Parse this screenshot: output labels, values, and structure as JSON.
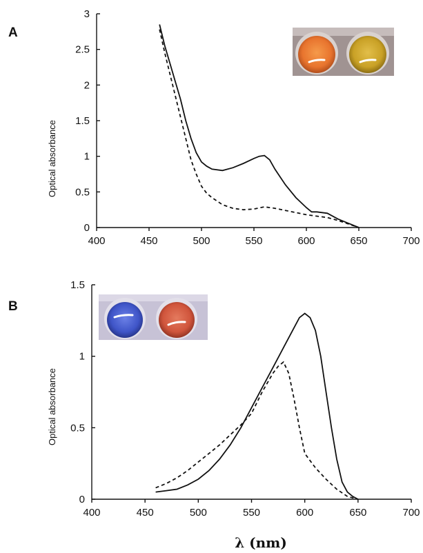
{
  "figure": {
    "xlabel": "λ (nm)",
    "colors": {
      "orange_well": "#e8742e",
      "amber_well": "#c9a126",
      "blue_well": "#3f55c8",
      "red_well": "#d0553c"
    }
  },
  "chart_data": [
    {
      "panel": "A",
      "type": "line",
      "xlabel": "",
      "ylabel": "Optical absorbance",
      "xlim": [
        400,
        700
      ],
      "ylim": [
        0,
        3
      ],
      "xticks": [
        400,
        450,
        500,
        550,
        600,
        650,
        700
      ],
      "yticks": [
        0,
        0.5,
        1,
        1.5,
        2,
        2.5,
        3
      ],
      "ytick_labels": [
        "0",
        "0.5",
        "1",
        "1.5",
        "2",
        "2.5",
        "3"
      ],
      "grid": false,
      "inset": "photo-top-right",
      "series": [
        {
          "style": "solid",
          "x": [
            460,
            465,
            470,
            475,
            480,
            485,
            490,
            495,
            500,
            505,
            510,
            520,
            530,
            540,
            550,
            555,
            560,
            565,
            570,
            580,
            590,
            600,
            605,
            610,
            620,
            630,
            640,
            650
          ],
          "y": [
            2.85,
            2.55,
            2.3,
            2.05,
            1.8,
            1.5,
            1.25,
            1.05,
            0.92,
            0.86,
            0.82,
            0.8,
            0.84,
            0.9,
            0.97,
            1.0,
            1.01,
            0.95,
            0.82,
            0.6,
            0.42,
            0.28,
            0.22,
            0.22,
            0.2,
            0.12,
            0.06,
            0.0
          ]
        },
        {
          "style": "dashed",
          "x": [
            460,
            465,
            470,
            475,
            480,
            485,
            490,
            495,
            500,
            505,
            510,
            520,
            530,
            540,
            550,
            560,
            570,
            580,
            590,
            600,
            610,
            620,
            630,
            640,
            650
          ],
          "y": [
            2.78,
            2.45,
            2.15,
            1.85,
            1.55,
            1.25,
            0.95,
            0.75,
            0.58,
            0.48,
            0.42,
            0.32,
            0.27,
            0.25,
            0.26,
            0.29,
            0.27,
            0.24,
            0.21,
            0.18,
            0.16,
            0.14,
            0.1,
            0.05,
            0.0
          ]
        }
      ]
    },
    {
      "panel": "B",
      "type": "line",
      "xlabel": "λ (nm)",
      "ylabel": "Optical absorbance",
      "xlim": [
        400,
        700
      ],
      "ylim": [
        0,
        1.5
      ],
      "xticks": [
        400,
        450,
        500,
        550,
        600,
        650,
        700
      ],
      "yticks": [
        0,
        0.5,
        1,
        1.5
      ],
      "ytick_labels": [
        "0",
        "0.5",
        "1",
        "1.5"
      ],
      "grid": false,
      "inset": "photo-top-left",
      "series": [
        {
          "style": "solid",
          "x": [
            460,
            470,
            480,
            490,
            500,
            510,
            520,
            530,
            540,
            550,
            560,
            570,
            580,
            590,
            595,
            600,
            605,
            610,
            615,
            620,
            625,
            630,
            635,
            640,
            645,
            650
          ],
          "y": [
            0.05,
            0.06,
            0.07,
            0.1,
            0.14,
            0.2,
            0.28,
            0.38,
            0.5,
            0.64,
            0.78,
            0.92,
            1.06,
            1.2,
            1.27,
            1.3,
            1.27,
            1.18,
            1.0,
            0.75,
            0.5,
            0.28,
            0.12,
            0.05,
            0.02,
            0.0
          ]
        },
        {
          "style": "dashed",
          "x": [
            460,
            470,
            480,
            490,
            500,
            510,
            520,
            530,
            540,
            550,
            560,
            570,
            575,
            580,
            585,
            590,
            595,
            600,
            610,
            620,
            630,
            640,
            650
          ],
          "y": [
            0.08,
            0.11,
            0.15,
            0.2,
            0.26,
            0.32,
            0.38,
            0.45,
            0.52,
            0.6,
            0.75,
            0.88,
            0.93,
            0.96,
            0.88,
            0.7,
            0.5,
            0.32,
            0.22,
            0.14,
            0.07,
            0.02,
            0.0
          ]
        }
      ]
    }
  ]
}
